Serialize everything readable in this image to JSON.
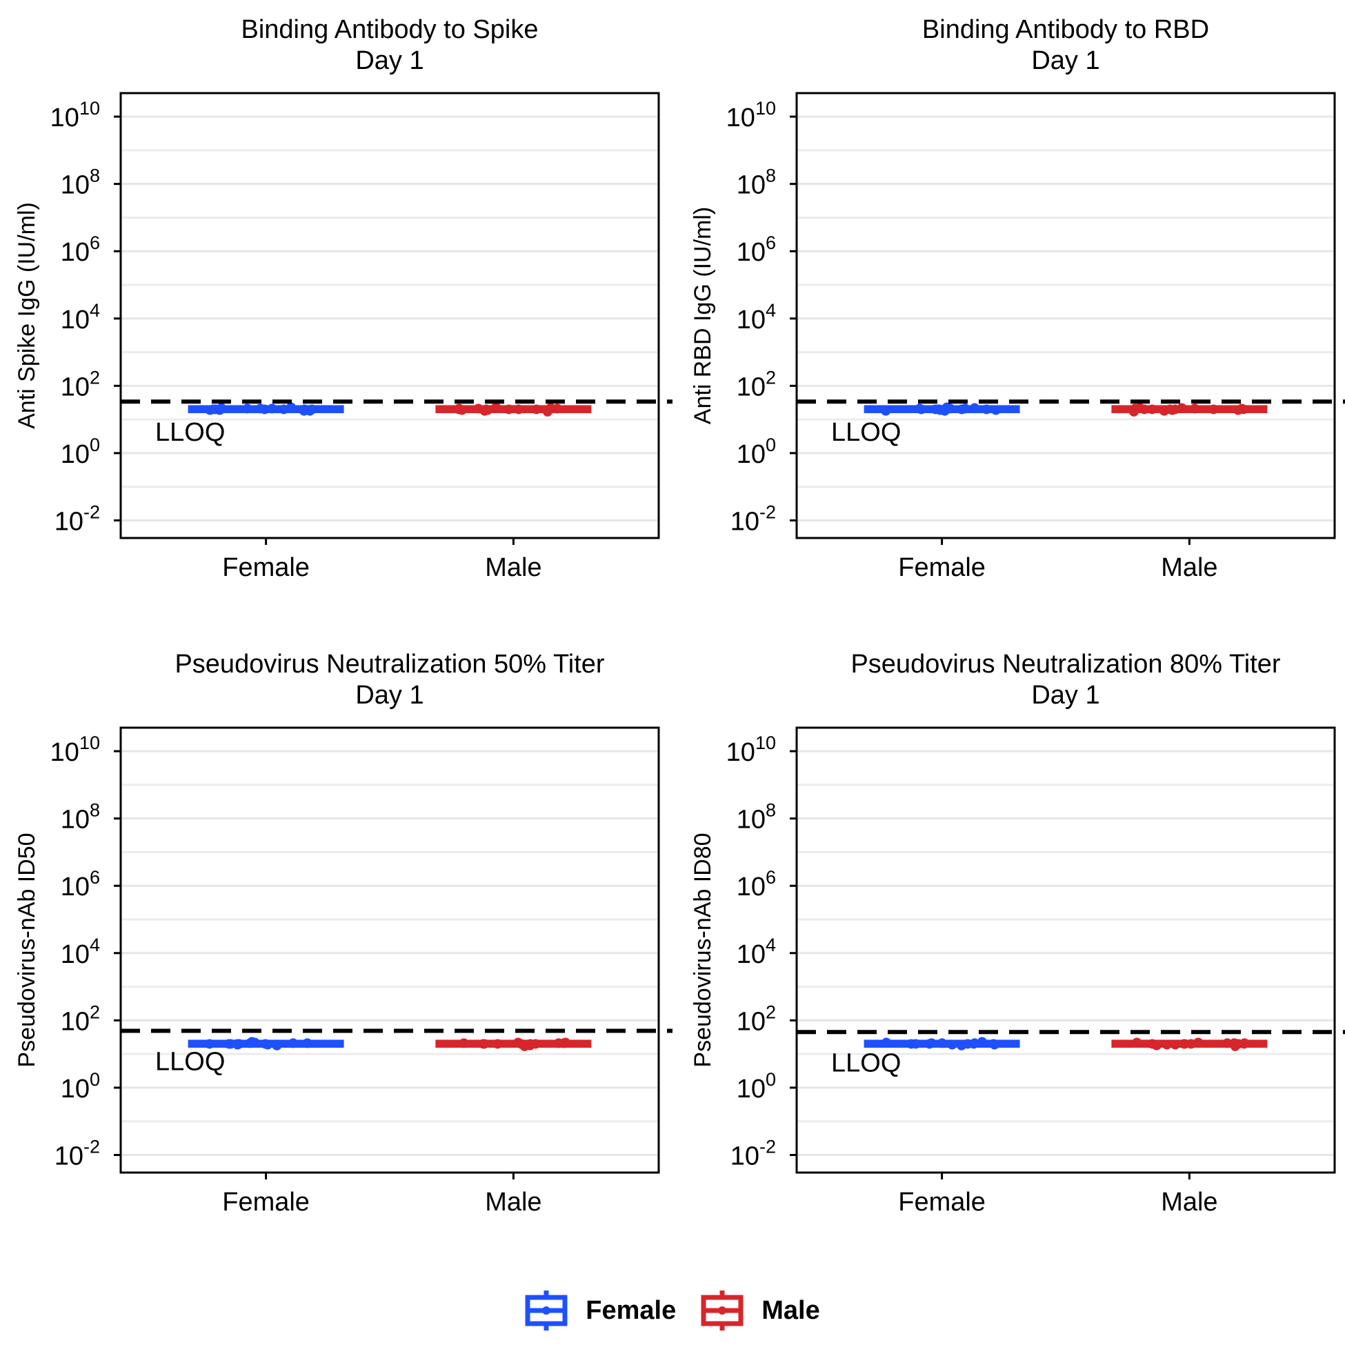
{
  "chart_data": [
    {
      "type": "boxplot",
      "title": "Binding Antibody to Spike",
      "subtitle": "Day 1",
      "xlabel": "",
      "ylabel": "Anti Spike IgG (IU/ml)",
      "categories": [
        "Female",
        "Male"
      ],
      "yscale": "log10",
      "ylim": [
        0.003,
        50000000000
      ],
      "yticks": [
        0.01,
        1,
        100,
        10000,
        1000000,
        100000000,
        10000000000
      ],
      "ytick_labels": [
        {
          "base": "10",
          "exp": "-2"
        },
        {
          "base": "10",
          "exp": "0"
        },
        {
          "base": "10",
          "exp": "2"
        },
        {
          "base": "10",
          "exp": "4"
        },
        {
          "base": "10",
          "exp": "6"
        },
        {
          "base": "10",
          "exp": "8"
        },
        {
          "base": "10",
          "exp": "10"
        }
      ],
      "series": [
        {
          "name": "Female",
          "color": "#1F50FF",
          "values": [
            20,
            19,
            21,
            20,
            18,
            22,
            20,
            21,
            19,
            20,
            23,
            18,
            20,
            21,
            20
          ]
        },
        {
          "name": "Male",
          "color": "#D7262B",
          "values": [
            20,
            21,
            19,
            20,
            22,
            18,
            20,
            19,
            21,
            20,
            23,
            17,
            20,
            21,
            20
          ]
        }
      ],
      "reference_line": {
        "value": 34,
        "label": "LLOQ",
        "style": "dashed"
      }
    },
    {
      "type": "boxplot",
      "title": "Binding Antibody to RBD",
      "subtitle": "Day 1",
      "xlabel": "",
      "ylabel": "Anti RBD IgG (IU/ml)",
      "categories": [
        "Female",
        "Male"
      ],
      "yscale": "log10",
      "ylim": [
        0.003,
        50000000000
      ],
      "yticks": [
        0.01,
        1,
        100,
        10000,
        1000000,
        100000000,
        10000000000
      ],
      "ytick_labels": [
        {
          "base": "10",
          "exp": "-2"
        },
        {
          "base": "10",
          "exp": "0"
        },
        {
          "base": "10",
          "exp": "2"
        },
        {
          "base": "10",
          "exp": "4"
        },
        {
          "base": "10",
          "exp": "6"
        },
        {
          "base": "10",
          "exp": "8"
        },
        {
          "base": "10",
          "exp": "10"
        }
      ],
      "series": [
        {
          "name": "Female",
          "color": "#1F50FF",
          "values": [
            20,
            19,
            21,
            20,
            18,
            22,
            20,
            21,
            19,
            20,
            23,
            18,
            20,
            21,
            20
          ]
        },
        {
          "name": "Male",
          "color": "#D7262B",
          "values": [
            20,
            21,
            19,
            20,
            22,
            18,
            20,
            19,
            21,
            20,
            22,
            17,
            20,
            21,
            20
          ]
        }
      ],
      "reference_line": {
        "value": 34,
        "label": "LLOQ",
        "style": "dashed"
      }
    },
    {
      "type": "boxplot",
      "title": "Pseudovirus Neutralization 50% Titer",
      "subtitle": "Day 1",
      "xlabel": "",
      "ylabel": "Pseudovirus-nAb ID50",
      "categories": [
        "Female",
        "Male"
      ],
      "yscale": "log10",
      "ylim": [
        0.003,
        50000000000
      ],
      "yticks": [
        0.01,
        1,
        100,
        10000,
        1000000,
        100000000,
        10000000000
      ],
      "ytick_labels": [
        {
          "base": "10",
          "exp": "-2"
        },
        {
          "base": "10",
          "exp": "0"
        },
        {
          "base": "10",
          "exp": "2"
        },
        {
          "base": "10",
          "exp": "4"
        },
        {
          "base": "10",
          "exp": "6"
        },
        {
          "base": "10",
          "exp": "8"
        },
        {
          "base": "10",
          "exp": "10"
        }
      ],
      "series": [
        {
          "name": "Female",
          "color": "#1F50FF",
          "values": [
            20,
            19,
            21,
            20,
            18,
            22,
            20,
            21,
            19,
            20,
            23,
            18,
            20,
            21,
            20
          ]
        },
        {
          "name": "Male",
          "color": "#D7262B",
          "values": [
            20,
            21,
            19,
            20,
            22,
            18,
            20,
            19,
            21,
            20,
            22,
            17,
            20,
            21,
            20
          ]
        }
      ],
      "reference_line": {
        "value": 49,
        "label": "LLOQ",
        "style": "dashed"
      }
    },
    {
      "type": "boxplot",
      "title": "Pseudovirus Neutralization 80% Titer",
      "subtitle": "Day 1",
      "xlabel": "",
      "ylabel": "Pseudovirus-nAb ID80",
      "categories": [
        "Female",
        "Male"
      ],
      "yscale": "log10",
      "ylim": [
        0.003,
        50000000000
      ],
      "yticks": [
        0.01,
        1,
        100,
        10000,
        1000000,
        100000000,
        10000000000
      ],
      "ytick_labels": [
        {
          "base": "10",
          "exp": "-2"
        },
        {
          "base": "10",
          "exp": "0"
        },
        {
          "base": "10",
          "exp": "2"
        },
        {
          "base": "10",
          "exp": "4"
        },
        {
          "base": "10",
          "exp": "6"
        },
        {
          "base": "10",
          "exp": "8"
        },
        {
          "base": "10",
          "exp": "10"
        }
      ],
      "series": [
        {
          "name": "Female",
          "color": "#1F50FF",
          "values": [
            20,
            19,
            21,
            20,
            18,
            22,
            20,
            21,
            19,
            20,
            23,
            18,
            20,
            21,
            20
          ]
        },
        {
          "name": "Male",
          "color": "#D7262B",
          "values": [
            20,
            21,
            19,
            20,
            22,
            18,
            20,
            19,
            21,
            20,
            22,
            17,
            20,
            21,
            20
          ]
        }
      ],
      "reference_line": {
        "value": 45,
        "label": "LLOQ",
        "style": "dashed"
      }
    }
  ],
  "legend": {
    "position": "bottom",
    "items": [
      {
        "label": "Female",
        "color": "#1F50FF"
      },
      {
        "label": "Male",
        "color": "#D7262B"
      }
    ]
  }
}
